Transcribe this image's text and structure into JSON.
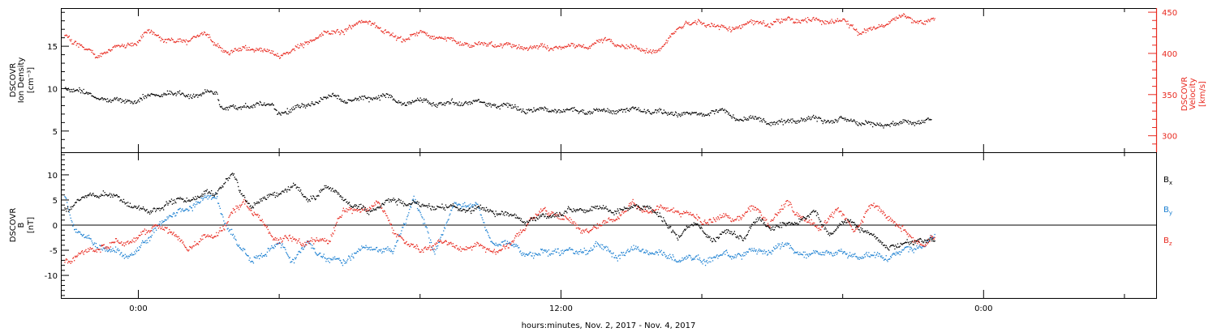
{
  "figure": {
    "xlabel": "hours:minutes, Nov.  2, 2017 - Nov.  4, 2017"
  },
  "chart_data": [
    {
      "type": "scatter",
      "panel": "top",
      "x_unit": "hours from 2017-11-02 00:00",
      "xlim": [
        -2.2,
        28.9
      ],
      "x_ticks": [
        {
          "x": 0,
          "label": "0:00"
        },
        {
          "x": 12,
          "label": "12:00"
        },
        {
          "x": 24,
          "label": "0:00"
        }
      ],
      "ylabel": [
        "DSCOVR",
        "Ion  Density",
        "[cm⁻³]"
      ],
      "ylim": [
        2.5,
        19.5
      ],
      "y_ticks": [
        5,
        10,
        15
      ],
      "y2label": [
        "DSCOVR",
        "Velocity",
        "[km/s]"
      ],
      "y2lim": [
        280,
        455
      ],
      "y2_ticks": [
        300,
        350,
        400,
        450
      ],
      "series": [
        {
          "name": "Ion Density",
          "axis": "left",
          "color": "#000000",
          "knots": [
            [
              -2.1,
              10.2
            ],
            [
              -1.4,
              9.4
            ],
            [
              -0.8,
              8.6
            ],
            [
              0.0,
              8.6
            ],
            [
              0.3,
              9.3
            ],
            [
              0.9,
              9.5
            ],
            [
              1.5,
              9.2
            ],
            [
              2.0,
              9.6
            ],
            [
              2.2,
              9.8
            ],
            [
              2.3,
              8.0
            ],
            [
              2.8,
              7.6
            ],
            [
              3.3,
              8.3
            ],
            [
              3.8,
              8.0
            ],
            [
              4.0,
              7.2
            ],
            [
              4.5,
              7.8
            ],
            [
              5.0,
              8.5
            ],
            [
              5.5,
              9.3
            ],
            [
              6.0,
              8.5
            ],
            [
              6.5,
              9.0
            ],
            [
              7.0,
              9.2
            ],
            [
              7.5,
              8.3
            ],
            [
              8.0,
              8.7
            ],
            [
              8.5,
              8.2
            ],
            [
              9.5,
              8.5
            ],
            [
              10.5,
              8.0
            ],
            [
              11.0,
              7.5
            ],
            [
              12.0,
              7.5
            ],
            [
              13.0,
              7.4
            ],
            [
              14.0,
              7.6
            ],
            [
              15.0,
              7.2
            ],
            [
              16.0,
              7.0
            ],
            [
              16.5,
              7.6
            ],
            [
              17.0,
              6.5
            ],
            [
              17.5,
              6.5
            ],
            [
              18.0,
              6.0
            ],
            [
              19.0,
              6.5
            ],
            [
              19.5,
              6.3
            ],
            [
              20.0,
              6.4
            ],
            [
              21.0,
              5.7
            ],
            [
              21.5,
              6.0
            ],
            [
              22.0,
              6.0
            ],
            [
              22.5,
              6.5
            ]
          ]
        },
        {
          "name": "Velocity",
          "axis": "right",
          "color": "#e8291f",
          "knots": [
            [
              -2.1,
              425
            ],
            [
              -1.8,
              413
            ],
            [
              -1.2,
              398
            ],
            [
              -0.6,
              408
            ],
            [
              0.0,
              415
            ],
            [
              0.3,
              428
            ],
            [
              0.7,
              418
            ],
            [
              1.2,
              413
            ],
            [
              1.8,
              426
            ],
            [
              2.2,
              412
            ],
            [
              2.6,
              400
            ],
            [
              3.0,
              408
            ],
            [
              3.5,
              404
            ],
            [
              4.0,
              398
            ],
            [
              4.5,
              406
            ],
            [
              5.0,
              420
            ],
            [
              5.3,
              424
            ],
            [
              5.8,
              428
            ],
            [
              6.2,
              436
            ],
            [
              6.6,
              440
            ],
            [
              7.0,
              425
            ],
            [
              7.5,
              418
            ],
            [
              8.0,
              426
            ],
            [
              8.5,
              420
            ],
            [
              9.5,
              410
            ],
            [
              10.0,
              412
            ],
            [
              11.0,
              408
            ],
            [
              12.0,
              408
            ],
            [
              12.8,
              410
            ],
            [
              13.3,
              418
            ],
            [
              13.8,
              408
            ],
            [
              14.8,
              403
            ],
            [
              15.3,
              433
            ],
            [
              16.0,
              438
            ],
            [
              16.7,
              430
            ],
            [
              17.4,
              438
            ],
            [
              18.0,
              437
            ],
            [
              18.5,
              442
            ],
            [
              19.2,
              440
            ],
            [
              20.0,
              440
            ],
            [
              20.5,
              426
            ],
            [
              21.0,
              432
            ],
            [
              21.6,
              446
            ],
            [
              22.1,
              440
            ],
            [
              22.6,
              440
            ]
          ]
        }
      ]
    },
    {
      "type": "scatter",
      "panel": "bottom",
      "x_unit": "hours from 2017-11-02 00:00",
      "xlim": [
        -2.2,
        28.9
      ],
      "ylabel": [
        "DSCOVR",
        "B",
        "[nT]"
      ],
      "ylim": [
        -14.5,
        14.5
      ],
      "y_ticks": [
        -10,
        -5,
        0,
        5,
        10
      ],
      "zero_line": true,
      "legend_position": "right",
      "series": [
        {
          "name": "Bx",
          "label_main": "B",
          "label_sub": "x",
          "color": "#000000",
          "knots": [
            [
              -2.1,
              3.0
            ],
            [
              -1.6,
              5.5
            ],
            [
              -1.0,
              6.5
            ],
            [
              -0.3,
              4.5
            ],
            [
              0.3,
              2.5
            ],
            [
              0.8,
              4.5
            ],
            [
              1.2,
              5.0
            ],
            [
              1.8,
              6.0
            ],
            [
              2.2,
              6.5
            ],
            [
              2.5,
              9.5
            ],
            [
              2.7,
              10.0
            ],
            [
              2.9,
              6.0
            ],
            [
              3.2,
              4.0
            ],
            [
              3.6,
              5.5
            ],
            [
              4.0,
              6.5
            ],
            [
              4.4,
              8.0
            ],
            [
              4.8,
              5.0
            ],
            [
              5.3,
              7.5
            ],
            [
              5.8,
              6.0
            ],
            [
              6.0,
              4.0
            ],
            [
              6.5,
              3.0
            ],
            [
              7.2,
              5.0
            ],
            [
              8.0,
              4.0
            ],
            [
              9.0,
              3.5
            ],
            [
              10.0,
              3.0
            ],
            [
              11.0,
              1.0
            ],
            [
              12.0,
              2.5
            ],
            [
              12.8,
              3.5
            ],
            [
              13.5,
              3.0
            ],
            [
              14.5,
              4.0
            ],
            [
              14.8,
              1.5
            ],
            [
              15.3,
              -2.0
            ],
            [
              15.8,
              0.5
            ],
            [
              16.3,
              -3.0
            ],
            [
              16.8,
              -1.0
            ],
            [
              17.2,
              -2.5
            ],
            [
              17.6,
              1.5
            ],
            [
              18.0,
              -0.5
            ],
            [
              18.6,
              0.5
            ],
            [
              19.2,
              2.5
            ],
            [
              19.6,
              -1.5
            ],
            [
              20.2,
              1.0
            ],
            [
              20.7,
              -1.5
            ],
            [
              21.2,
              -4.0
            ],
            [
              21.7,
              -4.0
            ],
            [
              22.2,
              -2.5
            ],
            [
              22.6,
              -3.5
            ]
          ]
        },
        {
          "name": "By",
          "label_main": "B",
          "label_sub": "y",
          "color": "#1a7fd1",
          "knots": [
            [
              -2.1,
              6.0
            ],
            [
              -1.8,
              -1.0
            ],
            [
              -1.3,
              -3.5
            ],
            [
              -0.8,
              -5.0
            ],
            [
              -0.3,
              -6.0
            ],
            [
              0.3,
              -3.0
            ],
            [
              0.6,
              1.0
            ],
            [
              1.0,
              2.0
            ],
            [
              1.4,
              3.5
            ],
            [
              1.8,
              5.0
            ],
            [
              2.2,
              6.0
            ],
            [
              2.4,
              1.5
            ],
            [
              2.8,
              -4.0
            ],
            [
              3.2,
              -6.5
            ],
            [
              3.6,
              -6.0
            ],
            [
              4.0,
              -3.0
            ],
            [
              4.4,
              -7.5
            ],
            [
              4.8,
              -3.0
            ],
            [
              5.3,
              -7.0
            ],
            [
              6.0,
              -6.5
            ],
            [
              6.5,
              -4.0
            ],
            [
              7.2,
              -5.5
            ],
            [
              7.8,
              5.5
            ],
            [
              8.4,
              -5.0
            ],
            [
              9.0,
              4.5
            ],
            [
              9.6,
              4.0
            ],
            [
              10.0,
              -3.0
            ],
            [
              10.6,
              -4.0
            ],
            [
              11.2,
              -6.0
            ],
            [
              11.8,
              -5.0
            ],
            [
              12.4,
              -5.5
            ],
            [
              13.0,
              -4.0
            ],
            [
              13.6,
              -6.0
            ],
            [
              14.2,
              -4.5
            ],
            [
              14.8,
              -6.0
            ],
            [
              15.4,
              -6.5
            ],
            [
              16.0,
              -6.8
            ],
            [
              16.6,
              -6.0
            ],
            [
              17.2,
              -5.5
            ],
            [
              17.8,
              -5.0
            ],
            [
              18.4,
              -4.0
            ],
            [
              19.0,
              -6.0
            ],
            [
              19.6,
              -5.0
            ],
            [
              20.2,
              -6.0
            ],
            [
              20.8,
              -6.0
            ],
            [
              21.3,
              -6.2
            ],
            [
              21.8,
              -5.0
            ],
            [
              22.2,
              -4.0
            ],
            [
              22.6,
              -2.5
            ]
          ]
        },
        {
          "name": "Bz",
          "label_main": "B",
          "label_sub": "z",
          "color": "#e8291f",
          "knots": [
            [
              -2.1,
              -7.0
            ],
            [
              -1.6,
              -5.5
            ],
            [
              -1.0,
              -4.0
            ],
            [
              -0.4,
              -3.5
            ],
            [
              0.2,
              -1.5
            ],
            [
              0.6,
              0.5
            ],
            [
              1.0,
              -2.0
            ],
            [
              1.4,
              -4.5
            ],
            [
              1.8,
              -2.5
            ],
            [
              2.2,
              -2.0
            ],
            [
              2.6,
              2.0
            ],
            [
              3.0,
              4.5
            ],
            [
              3.4,
              2.0
            ],
            [
              3.8,
              -3.0
            ],
            [
              4.2,
              -2.0
            ],
            [
              4.6,
              -4.0
            ],
            [
              5.0,
              -2.5
            ],
            [
              5.4,
              -3.5
            ],
            [
              5.8,
              3.5
            ],
            [
              6.3,
              2.5
            ],
            [
              6.8,
              5.0
            ],
            [
              7.2,
              -1.0
            ],
            [
              7.6,
              -3.0
            ],
            [
              8.0,
              -5.5
            ],
            [
              8.5,
              -3.0
            ],
            [
              9.0,
              -4.5
            ],
            [
              9.5,
              -4.0
            ],
            [
              10.0,
              -5.0
            ],
            [
              10.5,
              -4.5
            ],
            [
              11.0,
              0.5
            ],
            [
              11.5,
              3.0
            ],
            [
              12.0,
              2.0
            ],
            [
              12.6,
              -1.0
            ],
            [
              13.0,
              -0.5
            ],
            [
              13.5,
              1.5
            ],
            [
              14.0,
              4.0
            ],
            [
              14.5,
              3.0
            ],
            [
              15.0,
              3.5
            ],
            [
              15.5,
              2.5
            ],
            [
              16.0,
              1.0
            ],
            [
              16.5,
              1.5
            ],
            [
              17.0,
              1.5
            ],
            [
              17.5,
              3.5
            ],
            [
              17.9,
              0.5
            ],
            [
              18.4,
              4.5
            ],
            [
              18.8,
              2.0
            ],
            [
              19.3,
              -1.0
            ],
            [
              19.8,
              3.5
            ],
            [
              20.3,
              -1.0
            ],
            [
              20.8,
              4.0
            ],
            [
              21.3,
              2.0
            ],
            [
              21.8,
              -2.0
            ],
            [
              22.3,
              -3.5
            ],
            [
              22.6,
              -3.0
            ]
          ]
        }
      ]
    }
  ]
}
